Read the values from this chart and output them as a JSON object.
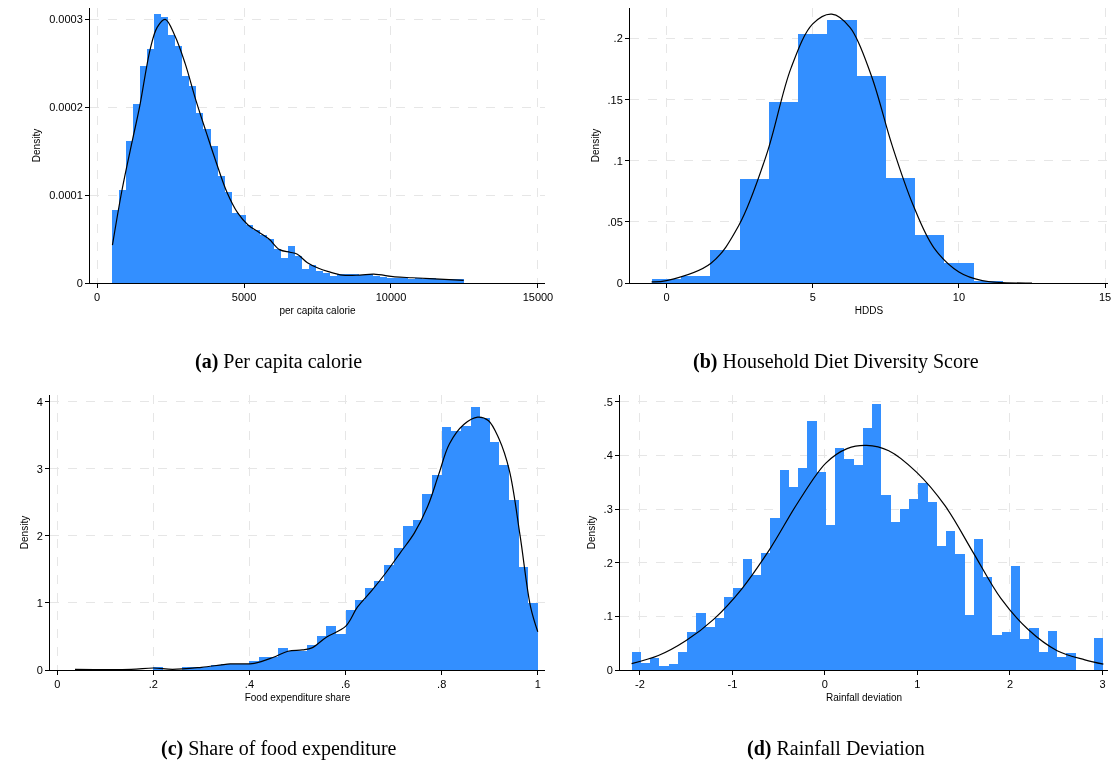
{
  "chart_data": [
    {
      "type": "histogram",
      "xlabel": "per capita calorie",
      "ylabel": "Density",
      "color": "#338fff",
      "grid": true,
      "xlim": [
        -240,
        15240
      ],
      "ylim": [
        0,
        0.000313
      ],
      "xticks": [
        0,
        5000,
        10000,
        15000
      ],
      "yticks": [
        {
          "value": 0,
          "label": "0"
        },
        {
          "value": 0.0001,
          "label": "0.0001"
        },
        {
          "value": 0.0002,
          "label": "0.0002"
        },
        {
          "value": 0.0003,
          "label": "0.0003"
        }
      ],
      "bins": [
        500,
        740,
        980,
        1220,
        1460,
        1700,
        1940,
        2180,
        2420,
        2660,
        2900,
        3140,
        3380,
        3620,
        3860,
        4100,
        4340,
        4580,
        4820,
        5060,
        5300,
        5540,
        5780,
        6020,
        6260,
        6500,
        6740,
        6980,
        7220,
        7460,
        7700,
        7940,
        8180,
        8420,
        8660,
        8900,
        9140,
        9380,
        9620,
        9860,
        10100,
        10340,
        10580,
        10820,
        11060,
        11300,
        11540,
        11780,
        12020,
        12260,
        12500
      ],
      "values": [
        8.3e-05,
        0.000106,
        0.000162,
        0.000204,
        0.000247,
        0.000266,
        0.000306,
        0.000303,
        0.000282,
        0.00027,
        0.000236,
        0.000224,
        0.000194,
        0.000175,
        0.000156,
        0.000122,
        0.000104,
        8e-05,
        7.7e-05,
        6.6e-05,
        6e-05,
        5.5e-05,
        5e-05,
        3.9e-05,
        2.9e-05,
        4.2e-05,
        3.1e-05,
        1.6e-05,
        2.1e-05,
        1.4e-05,
        1.1e-05,
        8e-06,
        1e-05,
        1e-05,
        1e-05,
        9e-06,
        1e-05,
        8e-06,
        7e-06,
        6e-06,
        6e-06,
        6e-06,
        5e-06,
        6e-06,
        5e-06,
        6e-06,
        4e-06,
        4e-06,
        4e-06,
        4e-06
      ],
      "series": [
        {
          "type": "line",
          "color": "#000000",
          "x": [
            523,
            856,
            1213,
            1451,
            1807,
            2045,
            2319,
            2640,
            2996,
            3353,
            3710,
            4067,
            4423,
            4780,
            5137,
            5494,
            5850,
            6207,
            6564,
            6801,
            7158,
            7515,
            7872,
            8347,
            8942,
            9417,
            10131,
            10725,
            11320,
            12473
          ],
          "values": [
            4.3e-05,
            0.000107,
            0.000164,
            0.000201,
            0.000266,
            0.000291,
            0.0003,
            0.000282,
            0.00025,
            0.000209,
            0.000172,
            0.000136,
            0.000103,
            8e-05,
            6.6e-05,
            5.8e-05,
            5e-05,
            3.8e-05,
            3.5e-05,
            3.3e-05,
            2.3e-05,
            1.7e-05,
            1.3e-05,
            9e-06,
            9e-06,
            1e-05,
            7e-06,
            6e-06,
            5e-06,
            3e-06
          ]
        }
      ],
      "annotations": [
        "(a) Per capita calorie"
      ]
    },
    {
      "type": "histogram",
      "xlabel": "HDDS",
      "ylabel": "Density",
      "color": "#338fff",
      "grid": true,
      "xlim": [
        -1.25,
        15.1
      ],
      "ylim": [
        0,
        0.225
      ],
      "xticks": [
        0,
        5,
        10,
        15
      ],
      "yticks": [
        {
          "value": 0,
          "label": "0"
        },
        {
          "value": 0.05,
          "label": ".05"
        },
        {
          "value": 0.1,
          "label": ".1"
        },
        {
          "value": 0.15,
          "label": ".15"
        },
        {
          "value": 0.2,
          "label": ".2"
        }
      ],
      "bins": [
        -0.5,
        0.5,
        1.5,
        2.5,
        3.5,
        4.5,
        5.5,
        6.5,
        7.5,
        8.5,
        9.5,
        10.5,
        11.5,
        12.5
      ],
      "values": [
        0.003,
        0.006,
        0.027,
        0.085,
        0.148,
        0.204,
        0.215,
        0.169,
        0.086,
        0.039,
        0.016,
        0.002,
        null
      ],
      "series": [
        {
          "type": "line",
          "color": "#000000",
          "x": [
            -0.51,
            0,
            1.51,
            2.47,
            3.42,
            4.26,
            5.0,
            5.65,
            6.28,
            7.0,
            7.71,
            8.43,
            9.14,
            10,
            10.8,
            12.5
          ],
          "values": [
            0.001,
            0.002,
            0.016,
            0.047,
            0.105,
            0.176,
            0.212,
            0.22,
            0.209,
            0.17,
            0.113,
            0.064,
            0.029,
            0.009,
            0.002,
            0
          ]
        }
      ],
      "annotations": [
        "(b) Household Diet Diversity Score"
      ]
    },
    {
      "type": "histogram",
      "xlabel": "Food expenditure share",
      "ylabel": "Density",
      "color": "#338fff",
      "grid": true,
      "xlim": [
        -0.015,
        1.015
      ],
      "ylim": [
        0,
        4.1
      ],
      "xticks": [
        {
          "value": 0,
          "label": "0"
        },
        {
          "value": 0.2,
          "label": ".2"
        },
        {
          "value": 0.4,
          "label": ".4"
        },
        {
          "value": 0.6,
          "label": ".6"
        },
        {
          "value": 0.8,
          "label": ".8"
        },
        {
          "value": 1,
          "label": "1"
        }
      ],
      "yticks": [
        0,
        1,
        2,
        3,
        4
      ],
      "bins": [
        0.04,
        0.06,
        0.08,
        0.1,
        0.12,
        0.14,
        0.16,
        0.18,
        0.2,
        0.22,
        0.24,
        0.26,
        0.28,
        0.3,
        0.32,
        0.34,
        0.36,
        0.38,
        0.4,
        0.42,
        0.44,
        0.46,
        0.48,
        0.5,
        0.52,
        0.54,
        0.56,
        0.58,
        0.6,
        0.62,
        0.64,
        0.66,
        0.68,
        0.7,
        0.72,
        0.74,
        0.76,
        0.78,
        0.8,
        0.82,
        0.84,
        0.86,
        0.88,
        0.9,
        0.92,
        0.94,
        0.96,
        0.98,
        1.0
      ],
      "values": [
        0.01,
        0.01,
        0,
        0,
        0,
        0,
        null,
        null,
        0.04,
        null,
        null,
        0.05,
        0.04,
        0.04,
        0.08,
        0.09,
        0.09,
        0.09,
        0.13,
        0.2,
        0.19,
        0.33,
        0.29,
        0.28,
        0.38,
        0.51,
        0.66,
        0.53,
        0.9,
        1.04,
        1.23,
        1.32,
        1.57,
        1.82,
        2.14,
        2.23,
        2.63,
        2.91,
        3.62,
        3.57,
        3.64,
        3.92,
        3.75,
        3.4,
        3.06,
        2.53,
        1.53,
        1.0
      ],
      "series": [
        {
          "type": "line",
          "color": "#000000",
          "x": [
            0.037,
            0.154,
            0.2,
            0.24,
            0.3,
            0.36,
            0.41,
            0.45,
            0.48,
            0.51,
            0.53,
            0.56,
            0.6,
            0.625,
            0.654,
            0.684,
            0.713,
            0.743,
            0.772,
            0.794,
            0.816,
            0.846,
            0.875,
            0.897,
            0.919,
            0.941,
            0.963,
            0.985,
            1.0
          ],
          "values": [
            0.01,
            0.01,
            0.03,
            0.01,
            0.04,
            0.09,
            0.1,
            0.19,
            0.28,
            0.3,
            0.33,
            0.49,
            0.65,
            0.94,
            1.18,
            1.45,
            1.74,
            2.04,
            2.46,
            2.92,
            3.37,
            3.66,
            3.77,
            3.72,
            3.45,
            2.97,
            2.01,
            0.94,
            0.57
          ]
        }
      ],
      "annotations": [
        "(c) Share of food expenditure"
      ]
    },
    {
      "type": "histogram",
      "xlabel": "Rainfall deviation",
      "ylabel": "Density",
      "color": "#338fff",
      "grid": true,
      "xlim": [
        -2.215,
        3.06
      ],
      "ylim": [
        0,
        0.513
      ],
      "xticks": [
        -2,
        -1,
        0,
        1,
        2,
        3
      ],
      "yticks": [
        {
          "value": 0,
          "label": "0"
        },
        {
          "value": 0.1,
          "label": ".1"
        },
        {
          "value": 0.2,
          "label": ".2"
        },
        {
          "value": 0.3,
          "label": ".3"
        },
        {
          "value": 0.4,
          "label": ".4"
        },
        {
          "value": 0.5,
          "label": ".5"
        }
      ],
      "bins": [
        -2.09,
        -1.99,
        -1.89,
        -1.79,
        -1.69,
        -1.59,
        -1.49,
        -1.39,
        -1.29,
        -1.19,
        -1.09,
        -0.99,
        -0.89,
        -0.79,
        -0.69,
        -0.59,
        -0.49,
        -0.39,
        -0.29,
        -0.19,
        -0.09,
        0.01,
        0.11,
        0.21,
        0.31,
        0.41,
        0.51,
        0.61,
        0.71,
        0.81,
        0.91,
        1.01,
        1.11,
        1.21,
        1.31,
        1.41,
        1.51,
        1.61,
        1.71,
        1.81,
        1.91,
        2.01,
        2.11,
        2.21,
        2.31,
        2.41,
        2.51,
        2.61,
        2.71,
        2.81,
        2.91,
        3.01
      ],
      "values": [
        0.034,
        0.013,
        0.022,
        0.008,
        0.011,
        0.034,
        0.071,
        0.106,
        0.08,
        0.097,
        0.136,
        0.153,
        0.208,
        0.177,
        0.218,
        0.284,
        0.374,
        0.342,
        0.376,
        0.464,
        0.37,
        0.271,
        0.415,
        0.393,
        0.382,
        0.452,
        0.496,
        0.326,
        0.276,
        0.301,
        0.319,
        0.348,
        0.314,
        0.232,
        0.259,
        0.216,
        0.103,
        0.245,
        0.174,
        0.066,
        0.071,
        0.194,
        0.058,
        0.078,
        0.034,
        0.073,
        0.024,
        0.031,
        0,
        0,
        0.06
      ],
      "series": [
        {
          "type": "line",
          "color": "#000000",
          "x": [
            -2.09,
            -1.8,
            -1.5,
            -1.2,
            -0.9,
            -0.59,
            -0.29,
            0.01,
            0.24,
            0.45,
            0.69,
            0.99,
            1.3,
            1.6,
            1.9,
            2.2,
            2.51,
            2.81,
            3.01
          ],
          "values": [
            0.012,
            0.027,
            0.055,
            0.095,
            0.151,
            0.227,
            0.313,
            0.386,
            0.413,
            0.419,
            0.409,
            0.369,
            0.306,
            0.22,
            0.134,
            0.075,
            0.036,
            0.019,
            0.011
          ]
        }
      ],
      "annotations": [
        "(d) Rainfall Deviation"
      ]
    }
  ]
}
